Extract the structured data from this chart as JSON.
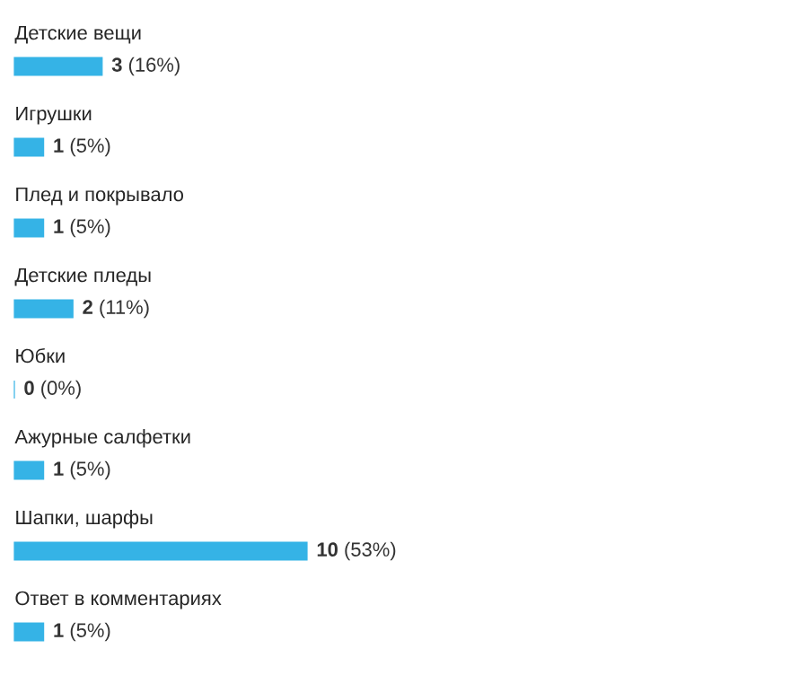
{
  "chart_data": {
    "type": "bar",
    "orientation": "horizontal",
    "color": "#35b3e6",
    "categories": [
      "Детские вещи",
      "Игрушки",
      "Плед и покрывало",
      "Детские пледы",
      "Юбки",
      "Ажурные салфетки",
      "Шапки, шарфы",
      "Ответ в комментариях"
    ],
    "values": [
      3,
      1,
      1,
      2,
      0,
      1,
      10,
      1
    ],
    "value_labels": [
      "**3** (16%)",
      "**1** (5%)",
      "**1** (5%)",
      "**2** (11%)",
      "**0** (0%)",
      "**1** (5%)",
      "**10** (53%)",
      "**1** (5%)"
    ]
  }
}
